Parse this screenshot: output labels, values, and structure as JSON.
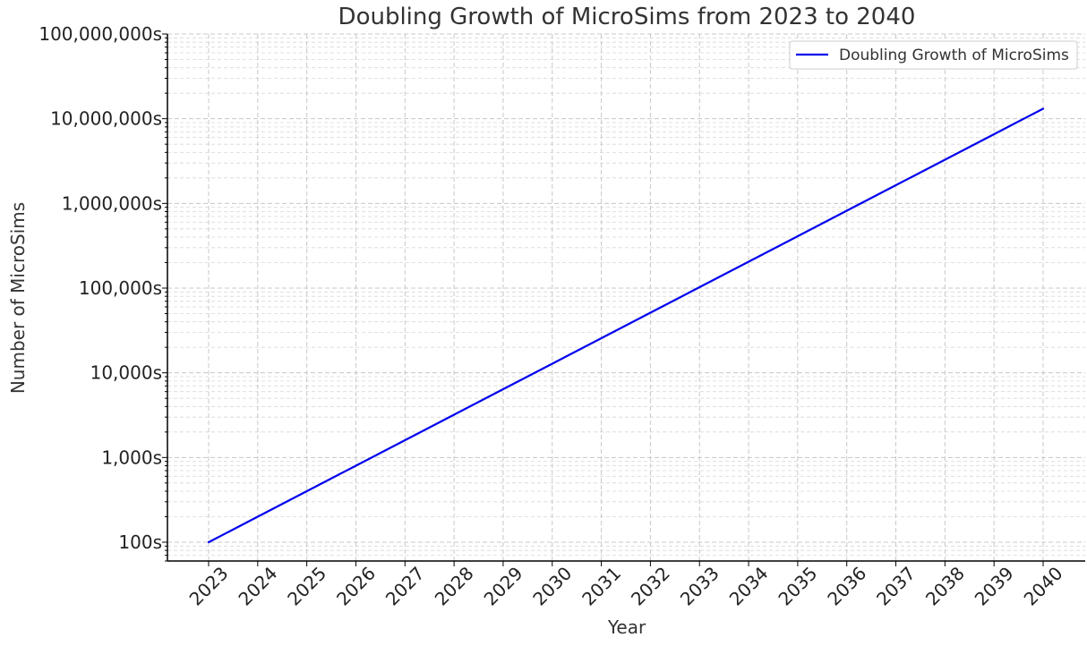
{
  "chart_data": {
    "type": "line",
    "title": "Doubling Growth of MicroSims from 2023 to 2040",
    "xlabel": "Year",
    "ylabel": "Number of MicroSims",
    "yscale": "log",
    "ylim": [
      60,
      100000000
    ],
    "ytick_values": [
      100,
      1000,
      10000,
      100000,
      1000000,
      10000000,
      100000000
    ],
    "ytick_labels": [
      "100s",
      "1,000s",
      "10,000s",
      "100,000s",
      "1,000,000s",
      "10,000,000s",
      "100,000,000s"
    ],
    "x": [
      2023,
      2024,
      2025,
      2026,
      2027,
      2028,
      2029,
      2030,
      2031,
      2032,
      2033,
      2034,
      2035,
      2036,
      2037,
      2038,
      2039,
      2040
    ],
    "xtick_labels": [
      "2023",
      "2024",
      "2025",
      "2026",
      "2027",
      "2028",
      "2029",
      "2030",
      "2031",
      "2032",
      "2033",
      "2034",
      "2035",
      "2036",
      "2037",
      "2038",
      "2039",
      "2040"
    ],
    "series": [
      {
        "name": "Doubling Growth of MicroSims",
        "color": "#0000ee",
        "values": [
          100,
          200,
          400,
          800,
          1600,
          3200,
          6400,
          12800,
          25600,
          51200,
          102400,
          204800,
          409600,
          819200,
          1638400,
          3276800,
          6553600,
          13107200
        ]
      }
    ],
    "grid": true,
    "legend_position": "top-right"
  }
}
